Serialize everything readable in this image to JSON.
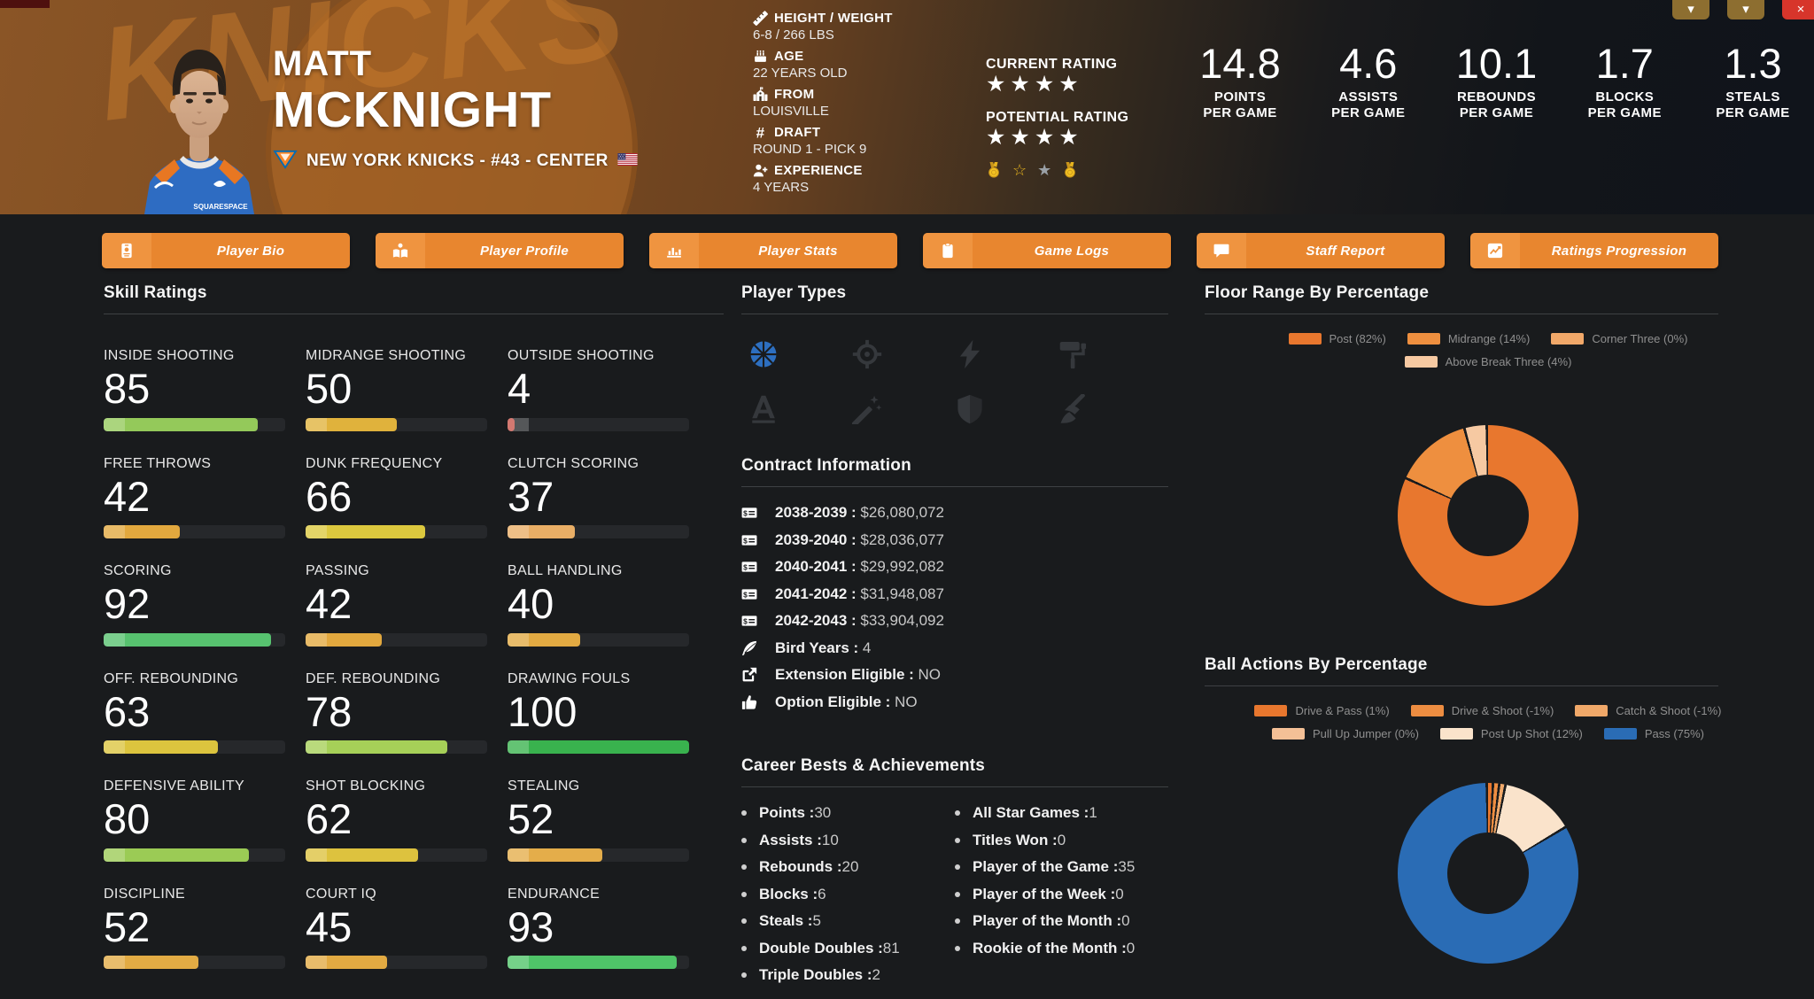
{
  "window": {
    "buttons": [
      {
        "name": "window-caret-button-1",
        "glyph": "▾",
        "color": "#8d6e30"
      },
      {
        "name": "window-caret-button-2",
        "glyph": "▾",
        "color": "#8d6e30"
      },
      {
        "name": "window-close-button",
        "glyph": "×",
        "color": "#d7352b"
      }
    ]
  },
  "header": {
    "first_name": "MATT",
    "last_name": "MCKNIGHT",
    "team_line": "NEW YORK KNICKS - #43 - CENTER",
    "jersey_text": "SQUARESPACE",
    "watermark": "KNICKS",
    "bio": [
      {
        "icon": "ruler-icon",
        "label": "HEIGHT / WEIGHT",
        "value": "6-8 / 266 LBS"
      },
      {
        "icon": "cake-icon",
        "label": "AGE",
        "value": "22 YEARS OLD"
      },
      {
        "icon": "school-icon",
        "label": "FROM",
        "value": "LOUISVILLE"
      },
      {
        "icon": "hashtag-icon",
        "label": "DRAFT",
        "value": "ROUND 1 - PICK 9"
      },
      {
        "icon": "user-plus-icon",
        "label": "EXPERIENCE",
        "value": "4 YEARS"
      }
    ],
    "current_rating": {
      "label": "CURRENT RATING",
      "stars": 4
    },
    "potential_rating": {
      "label": "POTENTIAL RATING",
      "stars": 4
    },
    "badges": [
      {
        "icon": "gold-medal-icon"
      },
      {
        "icon": "gold-star-outline-icon"
      },
      {
        "icon": "silver-star-icon"
      },
      {
        "icon": "gold-medal-icon"
      }
    ],
    "per_game_stats": [
      {
        "value": "14.8",
        "label": "POINTS",
        "sub": "PER GAME"
      },
      {
        "value": "4.6",
        "label": "ASSISTS",
        "sub": "PER GAME"
      },
      {
        "value": "10.1",
        "label": "REBOUNDS",
        "sub": "PER GAME"
      },
      {
        "value": "1.7",
        "label": "BLOCKS",
        "sub": "PER GAME"
      },
      {
        "value": "1.3",
        "label": "STEALS",
        "sub": "PER GAME"
      }
    ]
  },
  "tabs": [
    {
      "label": "Player Bio",
      "icon": "id-badge-icon"
    },
    {
      "label": "Player Profile",
      "icon": "book-reader-icon"
    },
    {
      "label": "Player Stats",
      "icon": "bar-chart-icon"
    },
    {
      "label": "Game Logs",
      "icon": "clipboard-icon"
    },
    {
      "label": "Staff Report",
      "icon": "comment-icon"
    },
    {
      "label": "Ratings Progression",
      "icon": "chart-line-icon"
    }
  ],
  "skills": {
    "title": "Skill Ratings",
    "items": [
      {
        "label": "INSIDE SHOOTING",
        "value": 85,
        "color": "#94c95a"
      },
      {
        "label": "MIDRANGE SHOOTING",
        "value": 50,
        "color": "#e0b23c"
      },
      {
        "label": "OUTSIDE SHOOTING",
        "value": 4,
        "color": "#c8544a"
      },
      {
        "label": "FREE THROWS",
        "value": 42,
        "color": "#e2a83e"
      },
      {
        "label": "DUNK FREQUENCY",
        "value": 66,
        "color": "#dcc83e"
      },
      {
        "label": "CLUTCH SCORING",
        "value": 37,
        "color": "#e9ae66"
      },
      {
        "label": "SCORING",
        "value": 92,
        "color": "#57c26f"
      },
      {
        "label": "PASSING",
        "value": 42,
        "color": "#e2a83e"
      },
      {
        "label": "BALL HANDLING",
        "value": 40,
        "color": "#e2aa42"
      },
      {
        "label": "OFF. REBOUNDING",
        "value": 63,
        "color": "#dcc43e"
      },
      {
        "label": "DEF. REBOUNDING",
        "value": 78,
        "color": "#a6d058"
      },
      {
        "label": "DRAWING FOULS",
        "value": 100,
        "color": "#39b24e"
      },
      {
        "label": "DEFENSIVE ABILITY",
        "value": 80,
        "color": "#9bcb55"
      },
      {
        "label": "SHOT BLOCKING",
        "value": 62,
        "color": "#ddc23e"
      },
      {
        "label": "STEALING",
        "value": 52,
        "color": "#e4ad4a"
      },
      {
        "label": "DISCIPLINE",
        "value": 52,
        "color": "#e2ab44"
      },
      {
        "label": "COURT IQ",
        "value": 45,
        "color": "#e2aa42"
      },
      {
        "label": "ENDURANCE",
        "value": 93,
        "color": "#4fc468"
      }
    ]
  },
  "player_types": {
    "title": "Player Types",
    "active_color": "#2d6fc0",
    "inactive_color": "#35383c",
    "items": [
      {
        "icon": "dribble-icon",
        "active": true
      },
      {
        "icon": "crosshair-icon",
        "active": false
      },
      {
        "icon": "bolt-icon",
        "active": false
      },
      {
        "icon": "paint-roller-icon",
        "active": false
      },
      {
        "icon": "font-a-icon",
        "active": false
      },
      {
        "icon": "magic-wand-icon",
        "active": false
      },
      {
        "icon": "shield-icon",
        "active": false
      },
      {
        "icon": "broom-icon",
        "active": false
      }
    ]
  },
  "contract": {
    "title": "Contract Information",
    "items": [
      {
        "icon": "money-check-icon",
        "label": "2038-2039",
        "value": "$26,080,072"
      },
      {
        "icon": "money-check-icon",
        "label": "2039-2040",
        "value": "$28,036,077"
      },
      {
        "icon": "money-check-icon",
        "label": "2040-2041",
        "value": "$29,992,082"
      },
      {
        "icon": "money-check-icon",
        "label": "2041-2042",
        "value": "$31,948,087"
      },
      {
        "icon": "money-check-icon",
        "label": "2042-2043",
        "value": "$33,904,092"
      },
      {
        "icon": "feather-icon",
        "label": "Bird Years",
        "value": "4"
      },
      {
        "icon": "external-link-icon",
        "label": "Extension Eligible",
        "value": "NO"
      },
      {
        "icon": "thumbs-up-icon",
        "label": "Option Eligible",
        "value": "NO"
      }
    ]
  },
  "career": {
    "title": "Career Bests & Achievements",
    "left": [
      {
        "label": "Points",
        "value": "30"
      },
      {
        "label": "Assists",
        "value": "10"
      },
      {
        "label": "Rebounds",
        "value": "20"
      },
      {
        "label": "Blocks",
        "value": "6"
      },
      {
        "label": "Steals",
        "value": "5"
      },
      {
        "label": "Double Doubles",
        "value": "81"
      },
      {
        "label": "Triple Doubles",
        "value": "2"
      }
    ],
    "right": [
      {
        "label": "All Star Games",
        "value": "1"
      },
      {
        "label": "Titles Won",
        "value": "0"
      },
      {
        "label": "Player of the Game",
        "value": "35"
      },
      {
        "label": "Player of the Week",
        "value": "0"
      },
      {
        "label": "Player of the Month",
        "value": "0"
      },
      {
        "label": "Rookie of the Month",
        "value": "0"
      }
    ]
  },
  "chart_data": [
    {
      "type": "pie",
      "variant": "donut",
      "title": "Floor Range By Percentage",
      "labels": [
        "Post",
        "Midrange",
        "Corner Three",
        "Above Break Three"
      ],
      "values": [
        82,
        14,
        0,
        4
      ],
      "legend_labels": [
        "Post (82%)",
        "Midrange (14%)",
        "Corner Three (0%)",
        "Above Break Three (4%)"
      ],
      "colors": [
        "#e8772e",
        "#ee8f3f",
        "#f1a869",
        "#f6c9a2"
      ],
      "legend_position": "top",
      "hole": 0.55
    },
    {
      "type": "pie",
      "variant": "donut",
      "title": "Ball Actions By Percentage",
      "labels": [
        "Drive & Pass",
        "Drive & Shoot",
        "Catch & Shoot",
        "Pull Up Jumper",
        "Post Up Shot",
        "Pass"
      ],
      "values": [
        1,
        -1,
        -1,
        0,
        12,
        75
      ],
      "legend_labels": [
        "Drive & Pass (1%)",
        "Drive & Shoot (-1%)",
        "Catch & Shoot (-1%)",
        "Pull Up Jumper (0%)",
        "Post Up Shot (12%)",
        "Pass (75%)"
      ],
      "colors": [
        "#e8772e",
        "#ed8d41",
        "#f0a869",
        "#f4c096",
        "#fae3cb",
        "#2a6cb5"
      ],
      "legend_position": "top",
      "hole": 0.55
    }
  ]
}
